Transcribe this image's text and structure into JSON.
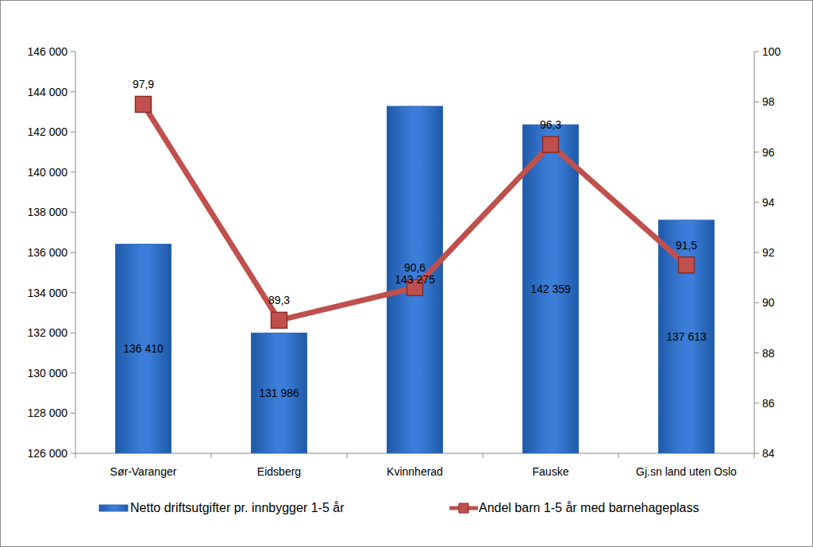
{
  "chart_data": {
    "type": "bar",
    "categories": [
      "Sør-Varanger",
      "Eidsberg",
      "Kvinnherad",
      "Fauske",
      "Gj.sn land uten Oslo"
    ],
    "series": [
      {
        "name": "Netto driftsutgifter pr. innbygger 1-5 år",
        "type": "bar",
        "color": "#3b7dd8",
        "values": [
          136410,
          131986,
          143275,
          142359,
          137613
        ],
        "value_labels": [
          "136 410",
          "131 986",
          "143 275",
          "142 359",
          "137 613"
        ]
      },
      {
        "name": "Andel barn 1-5 år med barnehageplass",
        "type": "line",
        "axis": "y2",
        "color": "#c0504d",
        "marker": "square",
        "values": [
          97.9,
          89.3,
          90.6,
          96.3,
          91.5
        ],
        "value_labels": [
          "97,9",
          "89,3",
          "90,6",
          "96,3",
          "91,5"
        ]
      }
    ],
    "ylim": [
      126000,
      146000
    ],
    "yticks": [
      {
        "value": 126000,
        "label": "126 000"
      },
      {
        "value": 128000,
        "label": "128 000"
      },
      {
        "value": 130000,
        "label": "130 000"
      },
      {
        "value": 132000,
        "label": "132 000"
      },
      {
        "value": 134000,
        "label": "134 000"
      },
      {
        "value": 136000,
        "label": "136 000"
      },
      {
        "value": 138000,
        "label": "138 000"
      },
      {
        "value": 140000,
        "label": "140 000"
      },
      {
        "value": 142000,
        "label": "142 000"
      },
      {
        "value": 144000,
        "label": "144 000"
      },
      {
        "value": 146000,
        "label": "146 000"
      }
    ],
    "y2lim": [
      84,
      100
    ],
    "y2ticks": [
      84,
      86,
      88,
      90,
      92,
      94,
      96,
      98,
      100
    ],
    "data_labels": true,
    "legend": "bottom",
    "grid": false
  }
}
